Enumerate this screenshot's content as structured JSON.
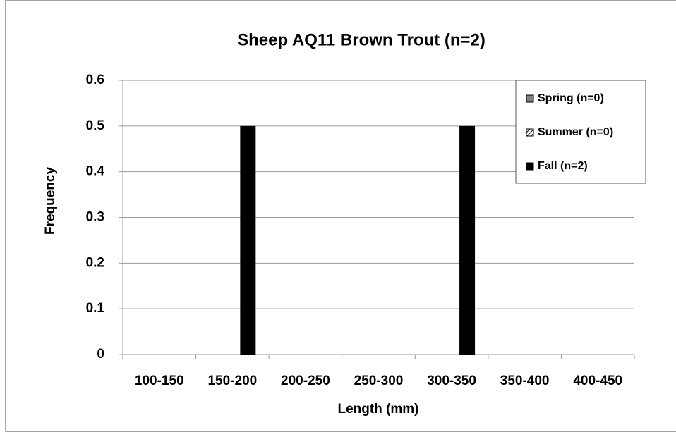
{
  "chart_data": {
    "type": "bar",
    "title": "Sheep AQ11  Brown Trout (n=2)",
    "x_label": "Length (mm)",
    "y_label": "Frequency",
    "categories": [
      "100-150",
      "150-200",
      "200-250",
      "250-300",
      "300-350",
      "350-400",
      "400-450"
    ],
    "series": [
      {
        "name": "Spring (n=0)",
        "color": "#808080",
        "values": [
          0,
          0,
          0,
          0,
          0,
          0,
          0
        ]
      },
      {
        "name": "Summer (n=0)",
        "color": "#ffffff",
        "values": [
          0,
          0,
          0,
          0,
          0,
          0,
          0
        ]
      },
      {
        "name": "Fall (n=2)",
        "color": "#000000",
        "values": [
          0,
          0.5,
          0,
          0,
          0.5,
          0,
          0
        ]
      }
    ],
    "ylim": [
      0,
      0.6
    ],
    "yticks": [
      0,
      0.1,
      0.2,
      0.3,
      0.4,
      0.5,
      0.6
    ],
    "grid": true,
    "legend": "upper right"
  }
}
